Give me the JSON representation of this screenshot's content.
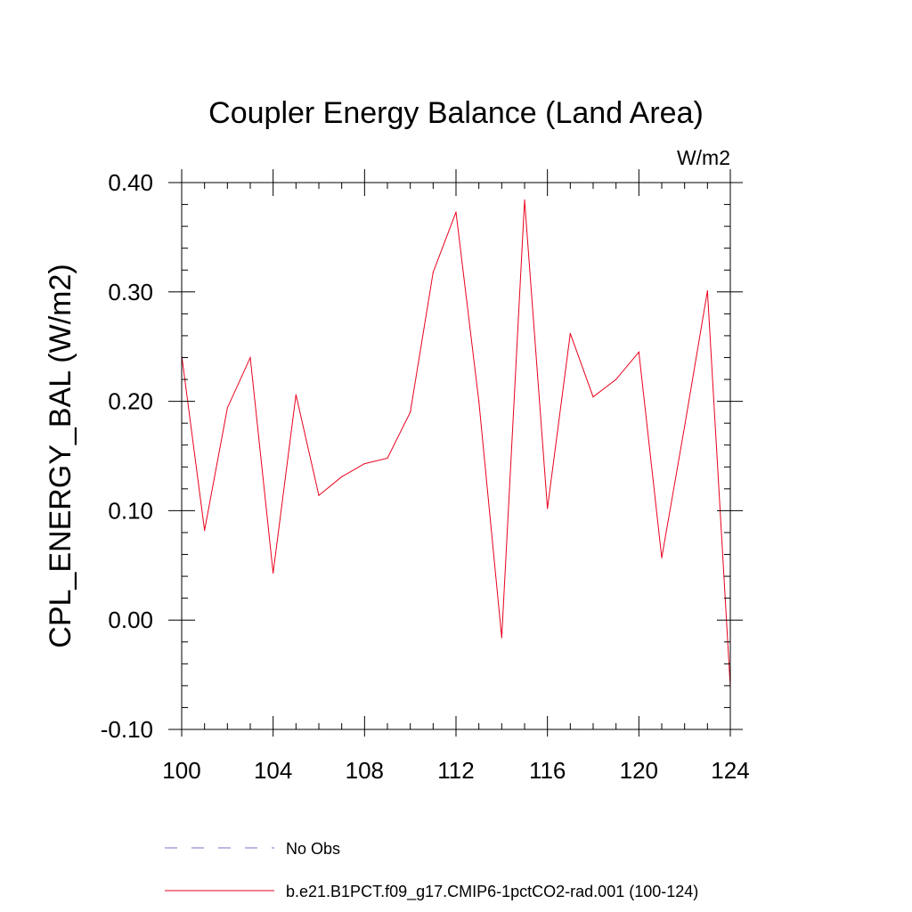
{
  "chart_data": {
    "type": "line",
    "title": "Coupler Energy Balance (Land Area)",
    "units_label": "W/m2",
    "ylabel": "CPL_ENERGY_BAL  (W/m2)",
    "xlabel": "",
    "xlim": [
      100,
      124
    ],
    "ylim": [
      -0.1,
      0.4
    ],
    "x_ticks": [
      100,
      104,
      108,
      112,
      116,
      120,
      124
    ],
    "x_tick_labels": [
      "100",
      "104",
      "108",
      "112",
      "116",
      "120",
      "124"
    ],
    "y_ticks": [
      -0.1,
      0.0,
      0.1,
      0.2,
      0.3,
      0.4
    ],
    "y_tick_labels": [
      "-0.10",
      "0.00",
      "0.10",
      "0.20",
      "0.30",
      "0.40"
    ],
    "grid": false,
    "legend_position": "bottom",
    "series": [
      {
        "name": "No Obs",
        "color": "#7b6fc4",
        "dash": "dashed",
        "x": [],
        "values": []
      },
      {
        "name": "b.e21.B1PCT.f09_g17.CMIP6-1pctCO2-rad.001 (100-124)",
        "color": "#e8001c",
        "dash": "solid",
        "x": [
          100,
          101,
          102,
          103,
          104,
          105,
          106,
          107,
          108,
          109,
          110,
          111,
          112,
          113,
          114,
          115,
          116,
          117,
          118,
          119,
          120,
          121,
          122,
          123,
          124
        ],
        "values": [
          0.242,
          0.082,
          0.194,
          0.24,
          0.043,
          0.206,
          0.114,
          0.131,
          0.143,
          0.148,
          0.19,
          0.318,
          0.373,
          0.2,
          -0.016,
          0.384,
          0.102,
          0.262,
          0.204,
          0.22,
          0.245,
          0.057,
          0.177,
          0.301,
          -0.061
        ]
      }
    ]
  }
}
